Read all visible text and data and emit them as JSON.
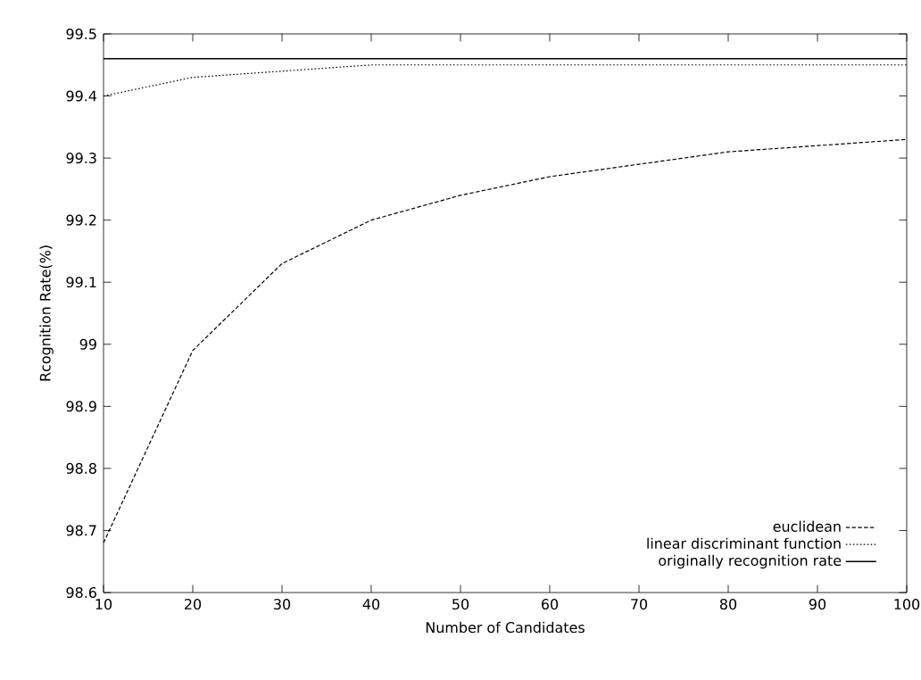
{
  "chart_data": {
    "type": "line",
    "xlabel": "Number of Candidates",
    "ylabel": "Rcognition Rate(%)",
    "x": [
      10,
      20,
      30,
      40,
      50,
      60,
      70,
      80,
      90,
      100
    ],
    "series": [
      {
        "name": "euclidean",
        "color": "#000000",
        "line_style": "dashed",
        "values": [
          98.68,
          98.99,
          99.13,
          99.2,
          99.24,
          99.27,
          99.29,
          99.31,
          99.32,
          99.33
        ]
      },
      {
        "name": "linear discriminant function",
        "color": "#000000",
        "line_style": "dotted",
        "values": [
          99.4,
          99.43,
          99.44,
          99.45,
          99.45,
          99.45,
          99.45,
          99.45,
          99.45,
          99.45
        ]
      },
      {
        "name": "originally recognition rate",
        "color": "#000000",
        "line_style": "solid",
        "values": [
          99.46,
          99.46,
          99.46,
          99.46,
          99.46,
          99.46,
          99.46,
          99.46,
          99.46,
          99.46
        ]
      }
    ],
    "xlim": [
      10,
      100
    ],
    "xticks": [
      10,
      20,
      30,
      40,
      50,
      60,
      70,
      80,
      90,
      100
    ],
    "ylim": [
      98.6,
      99.5
    ],
    "yticks": [
      98.6,
      98.7,
      98.8,
      98.9,
      99,
      99.1,
      99.2,
      99.3,
      99.4,
      99.5
    ],
    "legend": "bottom right",
    "marker": "none",
    "grid": false
  }
}
